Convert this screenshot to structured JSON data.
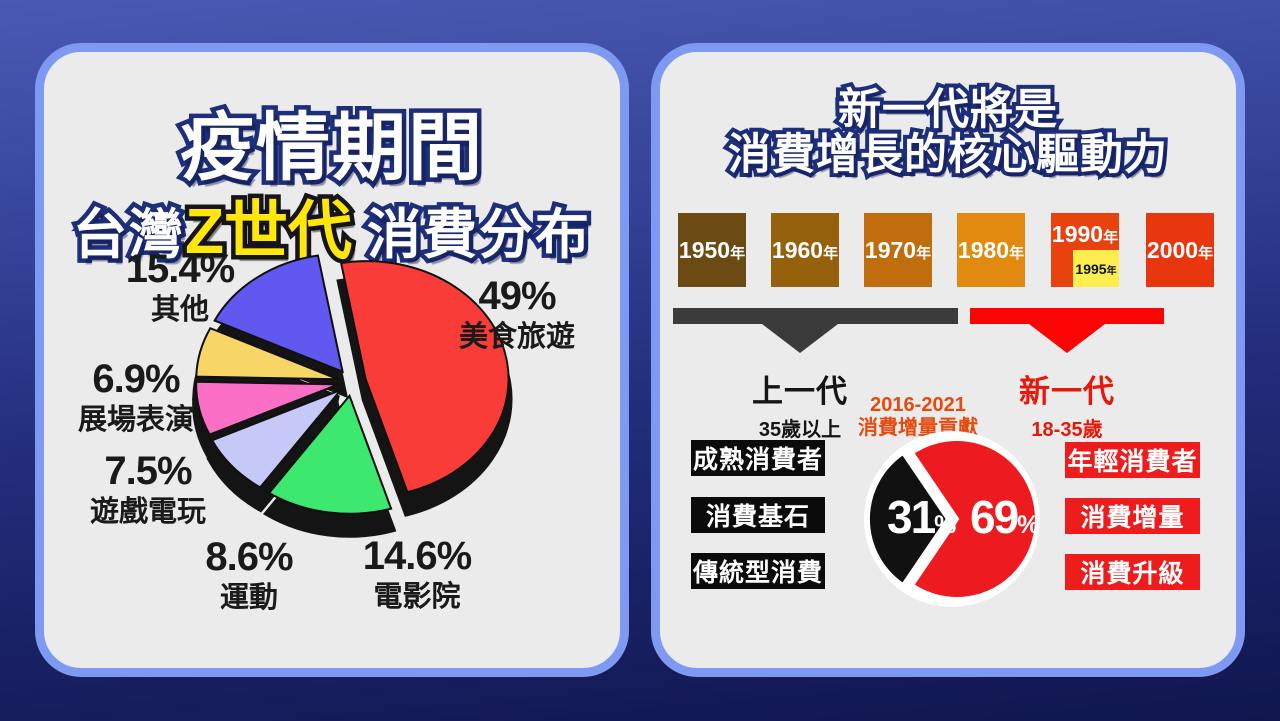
{
  "left_panel": {
    "title_line1": "疫情期間",
    "title2_prefix": "台灣",
    "title2_highlight": "Z世代",
    "title2_suffix": "消費分布"
  },
  "right_panel": {
    "title_line1": "新一代將是",
    "title_line2": "消費增長的核心驅動力",
    "timeline": {
      "years": [
        {
          "label": "1950",
          "suffix": "年",
          "color": "#6b4a13"
        },
        {
          "label": "1960",
          "suffix": "年",
          "color": "#96610d"
        },
        {
          "label": "1970",
          "suffix": "年",
          "color": "#c06d0e"
        },
        {
          "label": "1980",
          "suffix": "年",
          "color": "#e2890f"
        },
        {
          "label": "1990",
          "suffix": "年",
          "color": "#e8430e"
        },
        {
          "label": "2000",
          "suffix": "年",
          "color": "#e8370e"
        }
      ],
      "inset_1995": {
        "label": "1995",
        "suffix": "年",
        "color": "#fbee4e"
      }
    },
    "old_gen": {
      "label": "上一代",
      "sublabel": "35歲以上",
      "tags": [
        "成熟消費者",
        "消費基石",
        "傳統型消費"
      ]
    },
    "new_gen": {
      "label": "新一代",
      "sublabel": "18-35歲",
      "tags": [
        "年輕消費者",
        "消費增量",
        "消費升級"
      ]
    },
    "pie_caption_line1": "2016-2021",
    "pie_caption_line2": "消費增量貢獻"
  },
  "chart_data": [
    {
      "type": "pie",
      "title": "疫情期間 台灣Z世代 消費分布",
      "style": "3d-exploded",
      "labels": [
        "美食旅遊",
        "電影院",
        "運動",
        "遊戲電玩",
        "展場表演",
        "其他"
      ],
      "values": [
        49,
        14.6,
        8.6,
        7.5,
        6.9,
        15.4
      ],
      "value_labels": [
        "49%",
        "14.6%",
        "8.6%",
        "7.5%",
        "6.9%",
        "15.4%"
      ],
      "colors": [
        "#f93c38",
        "#3ce96e",
        "#c6c9f8",
        "#fc6fc6",
        "#f8d666",
        "#6058f0"
      ],
      "start_angle_deg": -10,
      "legend_position": "around-slices"
    },
    {
      "type": "pie",
      "title": "2016-2021 消費增量貢獻",
      "style": "flat-exploded",
      "labels": [
        "新一代 18-35歲",
        "上一代 35歲以上"
      ],
      "values": [
        69,
        31
      ],
      "value_labels": [
        "69%",
        "31%"
      ],
      "colors": [
        "#ed1b20",
        "#111111"
      ]
    }
  ]
}
